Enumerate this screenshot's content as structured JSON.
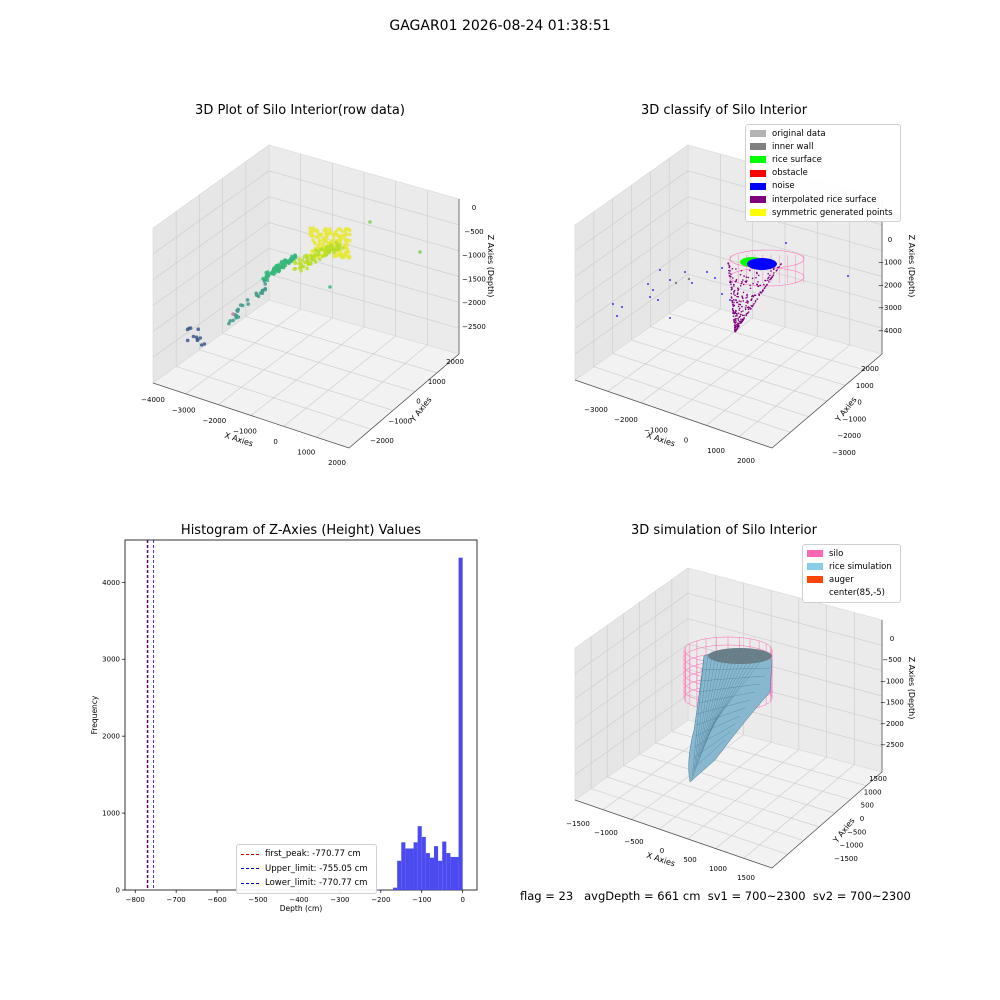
{
  "suptitle": "GAGAR01 2026-08-24 01:38:51",
  "panels": {
    "raw": {
      "title": "3D Plot of Silo Interior(row data)",
      "xlabel": "X Axies",
      "ylabel": "Y Axies",
      "zlabel": "Z Axies (Depth)",
      "xticks": [
        "−4000",
        "−3000",
        "−2000",
        "−1000",
        "0",
        "1000",
        "2000"
      ],
      "yticks": [
        "−2000",
        "−1000",
        "0",
        "1000",
        "2000"
      ],
      "zticks": [
        "0",
        "−500",
        "−1000",
        "−1500",
        "−2000",
        "−2500"
      ]
    },
    "classify": {
      "title": "3D classify of Silo Interior",
      "xlabel": "X Axies",
      "ylabel": "Y Axies",
      "zlabel": "Z Axies (Depth)",
      "xticks": [
        "−3000",
        "−2000",
        "−1000",
        "0",
        "1000",
        "2000"
      ],
      "yticks": [
        "−3000",
        "−2000",
        "−1000",
        "0",
        "1000",
        "2000"
      ],
      "zticks": [
        "1000",
        "0",
        "−1000",
        "−2000",
        "−3000",
        "−4000"
      ],
      "legend": [
        {
          "label": "original data",
          "color": "#b3b3b3"
        },
        {
          "label": "inner wall",
          "color": "#808080"
        },
        {
          "label": "rice surface",
          "color": "#00ff00"
        },
        {
          "label": "obstacle",
          "color": "#ff0000"
        },
        {
          "label": "noise",
          "color": "#0000ff"
        },
        {
          "label": "interpolated rice surface",
          "color": "#800080"
        },
        {
          "label": "symmetric generated points",
          "color": "#ffff00"
        }
      ]
    },
    "simulation": {
      "title": "3D simulation of Silo Interior",
      "xlabel": "X Axies",
      "ylabel": "Y Axies",
      "zlabel": "Z Axies (Depth)",
      "xticks": [
        "−1500",
        "−1000",
        "−500",
        "0",
        "500",
        "1000",
        "1500"
      ],
      "yticks": [
        "−1500",
        "−1000",
        "−500",
        "0",
        "500",
        "1000",
        "1500"
      ],
      "zticks": [
        "0",
        "−500",
        "−1000",
        "−1500",
        "−2000",
        "−2500"
      ],
      "legend": [
        {
          "label": "silo",
          "color": "#ff69b4"
        },
        {
          "label": "rice simulation",
          "color": "#87ceeb"
        },
        {
          "label": "auger",
          "color": "#ff4500"
        },
        {
          "label": "center(85,-5)",
          "color": ""
        }
      ]
    }
  },
  "chart_data": [
    {
      "type": "scatter",
      "title": "3D Plot of Silo Interior(row data)",
      "xlabel": "X Axies",
      "ylabel": "Y Axies",
      "zlabel": "Z Axies (Depth)",
      "xlim": [
        -4000,
        2500
      ],
      "ylim": [
        -2500,
        2500
      ],
      "zlim": [
        -2800,
        100
      ]
    },
    {
      "type": "scatter",
      "title": "3D classify of Silo Interior",
      "xlabel": "X Axies",
      "ylabel": "Y Axies",
      "zlabel": "Z Axies (Depth)",
      "xlim": [
        -3500,
        2500
      ],
      "ylim": [
        -3200,
        2500
      ],
      "zlim": [
        -4500,
        1200
      ]
    },
    {
      "type": "bar",
      "title": "Histogram of Z-Axies (Height) Values",
      "xlabel": "Depth (cm)",
      "ylabel": "Frequency",
      "xlim": [
        -825,
        35
      ],
      "ylim": [
        0,
        4550
      ],
      "xticks": [
        -800,
        -700,
        -600,
        -500,
        -400,
        -300,
        -200,
        -100,
        0
      ],
      "yticks": [
        0,
        1000,
        2000,
        3000,
        4000
      ],
      "bar_color": "#4a4af0",
      "bin_width": 10,
      "bins": [
        {
          "x": -300,
          "count": 8
        },
        {
          "x": -290,
          "count": 6
        },
        {
          "x": -210,
          "count": 6
        },
        {
          "x": -170,
          "count": 30
        },
        {
          "x": -160,
          "count": 380
        },
        {
          "x": -150,
          "count": 620
        },
        {
          "x": -140,
          "count": 540
        },
        {
          "x": -130,
          "count": 540
        },
        {
          "x": -120,
          "count": 620
        },
        {
          "x": -110,
          "count": 830
        },
        {
          "x": -100,
          "count": 690
        },
        {
          "x": -90,
          "count": 480
        },
        {
          "x": -80,
          "count": 420
        },
        {
          "x": -70,
          "count": 570
        },
        {
          "x": -60,
          "count": 380
        },
        {
          "x": -50,
          "count": 630
        },
        {
          "x": -40,
          "count": 480
        },
        {
          "x": -30,
          "count": 430
        },
        {
          "x": -20,
          "count": 430
        },
        {
          "x": -10,
          "count": 4320
        }
      ],
      "lines": [
        {
          "label": "first_peak: -770.77 cm",
          "x": -770.77,
          "color": "#cc0000"
        },
        {
          "label": "Upper_limit: -755.05 cm",
          "x": -755.05,
          "color": "#0000cc"
        },
        {
          "label": "Lower_limit: -770.77 cm",
          "x": -770.77,
          "color": "#0000cc"
        }
      ]
    },
    {
      "type": "area",
      "title": "3D simulation of Silo Interior",
      "xlabel": "X Axies",
      "ylabel": "Y Axies",
      "zlabel": "Z Axies (Depth)",
      "xlim": [
        -1600,
        1600
      ],
      "ylim": [
        -1600,
        1600
      ],
      "zlim": [
        -2800,
        300
      ]
    }
  ],
  "footer": "flag = 23   avgDepth = 661 cm  sv1 = 700~2300  sv2 = 700~2300"
}
